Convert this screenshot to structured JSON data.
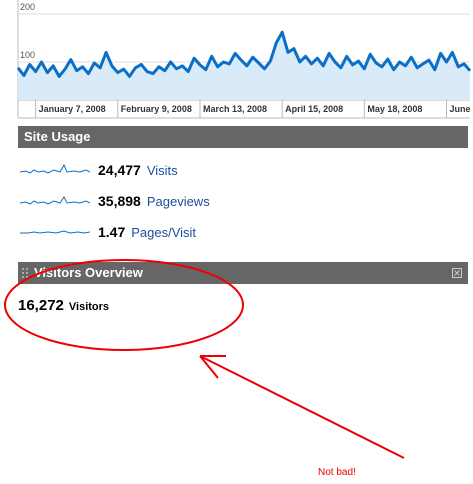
{
  "chart_data": {
    "type": "line",
    "color": "#0b6fc8",
    "fill": "#d9ebf9",
    "values": [
      88,
      72,
      95,
      80,
      100,
      78,
      92,
      70,
      85,
      105,
      82,
      90,
      76,
      98,
      88,
      120,
      92,
      78,
      85,
      70,
      88,
      95,
      80,
      76,
      90,
      82,
      100,
      86,
      92,
      80,
      108,
      94,
      84,
      112,
      90,
      100,
      96,
      118,
      104,
      92,
      110,
      98,
      86,
      102,
      140,
      162,
      120,
      128,
      100,
      112,
      96,
      108,
      92,
      118,
      100,
      88,
      112,
      94,
      102,
      86,
      116,
      98,
      90,
      106,
      84,
      100,
      92,
      110,
      88,
      96,
      104,
      84,
      118,
      100,
      120,
      90,
      96,
      82
    ],
    "categories": [
      null,
      null,
      null,
      "January 7, 2008",
      null,
      null,
      null,
      null,
      null,
      null,
      null,
      null,
      null,
      null,
      null,
      null,
      null,
      "February 9, 2008",
      null,
      null,
      null,
      null,
      null,
      null,
      null,
      null,
      null,
      null,
      null,
      null,
      null,
      "March 13, 2008",
      null,
      null,
      null,
      null,
      null,
      null,
      null,
      null,
      null,
      null,
      null,
      null,
      null,
      "April 15, 2008",
      null,
      null,
      null,
      null,
      null,
      null,
      null,
      null,
      null,
      null,
      null,
      null,
      null,
      "May 18, 2008",
      null,
      null,
      null,
      null,
      null,
      null,
      null,
      null,
      null,
      null,
      null,
      null,
      null,
      "June",
      null,
      null,
      null,
      null
    ],
    "ylim": [
      21,
      229
    ],
    "yticks": [
      100,
      200
    ],
    "grid": true
  },
  "site_usage": {
    "title": "Site Usage",
    "metrics": [
      {
        "value": "24,477",
        "label": "Visits"
      },
      {
        "value": "35,898",
        "label": "Pageviews"
      },
      {
        "value": "1.47",
        "label": "Pages/Visit"
      }
    ]
  },
  "visitors_overview": {
    "title": "Visitors Overview",
    "value": "16,272",
    "label": "Visitors"
  },
  "annotation": "Not bad!"
}
